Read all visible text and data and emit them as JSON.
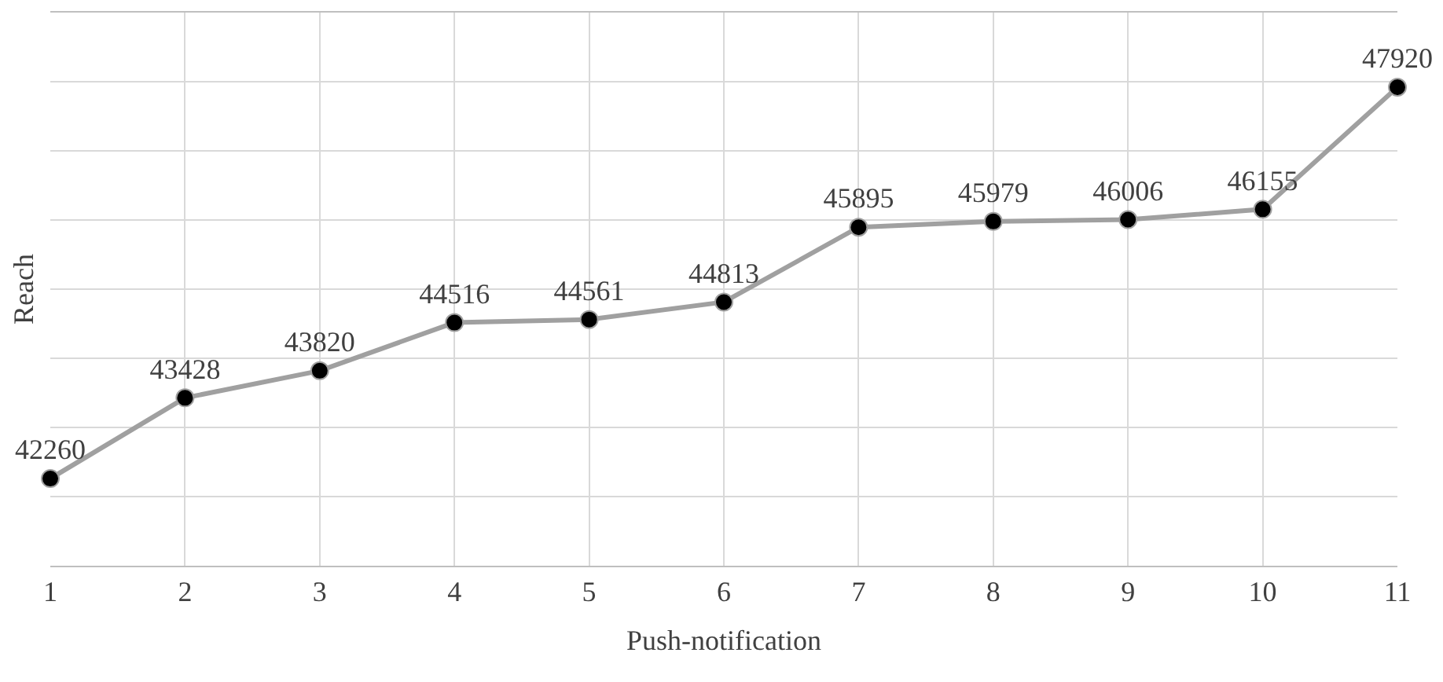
{
  "chart_data": {
    "type": "line",
    "xlabel": "Push-notification",
    "ylabel": "Reach",
    "x": [
      1,
      2,
      3,
      4,
      5,
      6,
      7,
      8,
      9,
      10,
      11
    ],
    "series": [
      {
        "color": "#a0a0a0",
        "values": [
          42260,
          43428,
          43820,
          44516,
          44561,
          44813,
          45895,
          45979,
          46006,
          46155,
          47920
        ]
      }
    ],
    "xlim": [
      1,
      11
    ],
    "xticks": [
      1,
      2,
      3,
      4,
      5,
      6,
      7,
      8,
      9,
      10,
      11
    ],
    "ylim": [
      41000,
      49000
    ],
    "yticks": [
      {
        "value": 41000,
        "label": null
      },
      {
        "value": 42000,
        "label": null
      },
      {
        "value": 43000,
        "label": null
      },
      {
        "value": 44000,
        "label": null
      },
      {
        "value": 45000,
        "label": null
      },
      {
        "value": 46000,
        "label": null
      },
      {
        "value": 47000,
        "label": null
      },
      {
        "value": 48000,
        "label": null
      }
    ],
    "tick_labels": "x",
    "grid": true,
    "marker": "circle",
    "line_style": "solid",
    "data_labels": true
  }
}
